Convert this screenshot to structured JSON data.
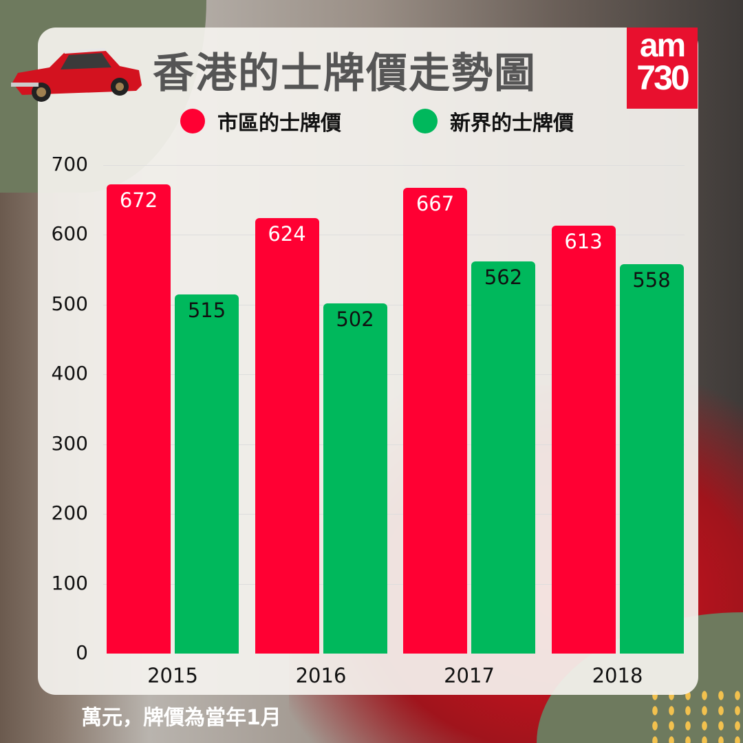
{
  "title": "香港的士牌價走勢圖",
  "logo": {
    "line1": "am",
    "line2": "730"
  },
  "footnote": "萬元，牌價為當年1月",
  "colors": {
    "urban": "#ff0033",
    "nt": "#00b85c",
    "title": "#555555",
    "panel": "#f4f2ee"
  },
  "chart_data": {
    "type": "bar",
    "title": "香港的士牌價走勢圖",
    "categories": [
      "2015",
      "2016",
      "2017",
      "2018"
    ],
    "series": [
      {
        "name": "市區的士牌價",
        "color": "#ff0033",
        "values": [
          672,
          624,
          667,
          613
        ]
      },
      {
        "name": "新界的士牌價",
        "color": "#00b85c",
        "values": [
          515,
          502,
          562,
          558
        ]
      }
    ],
    "yticks": [
      "0",
      "100",
      "200",
      "300",
      "400",
      "500",
      "600",
      "700"
    ],
    "ylim": [
      0,
      700
    ],
    "grid": true,
    "legend": "top",
    "data_labels": true
  }
}
